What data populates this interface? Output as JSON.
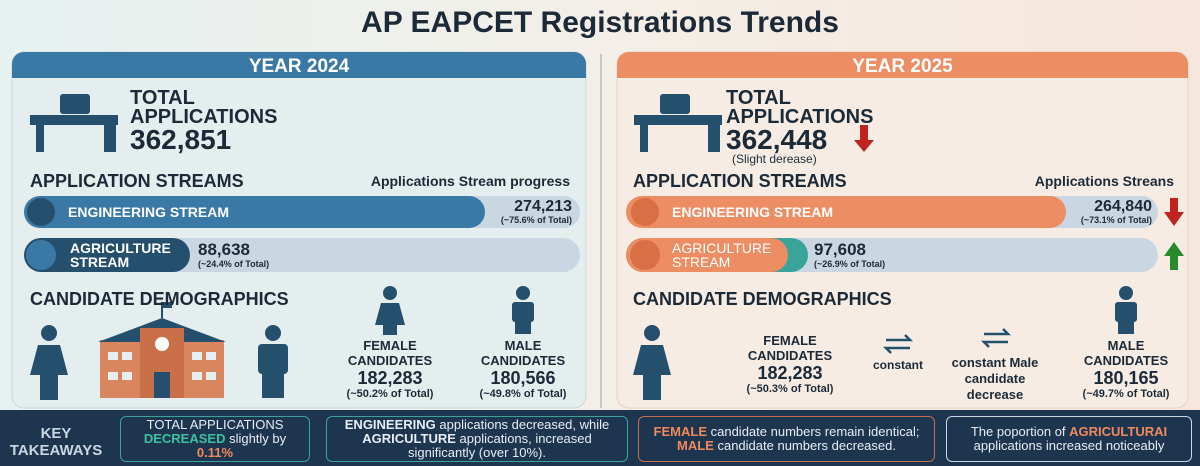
{
  "title": "AP EAPCET Registrations Trends",
  "panels": [
    {
      "year": "YEAR 2024",
      "total_label": "TOTAL APPLICATIONS",
      "total": "362,851",
      "streams_heading": "APPLICATION STREAMS",
      "streams_caption": "Applications Stream progress",
      "streams": [
        {
          "name": "ENGINEERING STREAM",
          "value": "274,213",
          "share": "(~75.6% of Total)"
        },
        {
          "name": "AGRICULTURE STREAM",
          "value": "88,638",
          "share": "(~24.4% of Total)"
        }
      ],
      "demographics_heading": "CANDIDATE DEMOGRAPHICS",
      "female": {
        "label": "FEMALE CANDIDATES",
        "value": "182,283",
        "share": "(~50.2% of Total)"
      },
      "male": {
        "label": "MALE CANDIDATES",
        "value": "180,566",
        "share": "(~49.8% of Total)"
      }
    },
    {
      "year": "YEAR 2025",
      "total_label": "TOTAL APPLICATIONS",
      "total": "362,448",
      "total_note": "(Slight derease)",
      "streams_heading": "APPLICATION STREAMS",
      "streams_caption": "Applications Streans",
      "streams": [
        {
          "name": "ENGINEERING STREAM",
          "value": "264,840",
          "share": "(~73.1% of Total)"
        },
        {
          "name": "AGRICULTURE STREAM",
          "value": "97,608",
          "share": "(~26.9% of Total)"
        }
      ],
      "demographics_heading": "CANDIDATE DEMOGRAPHICS",
      "female": {
        "label": "FEMALE CANDIDATES",
        "value": "182,283",
        "share": "(~50.3% of Total)",
        "note": "constant"
      },
      "male": {
        "label": "MALE CANDIDATES",
        "value": "180,165",
        "share": "(~49.7% of Total)",
        "note": "constant Male candidate decrease"
      }
    }
  ],
  "takeaways": {
    "heading": "KEY TAKEAWAYS",
    "items": [
      [
        "TOTAL APPLICATIONS ",
        "DECREASED",
        " slightly by ",
        "0.11%"
      ],
      [
        "ENGINEERING",
        " applications decreased, while ",
        "AGRICULTURE",
        " applications, increased significantly (over 10%)."
      ],
      [
        "FEMALE",
        " candidate numbers remain identical; ",
        "MALE",
        " candidate numbers decreased."
      ],
      [
        "The poportion of ",
        "AGRICULTURAI",
        " applications increased noticeably"
      ]
    ]
  }
}
